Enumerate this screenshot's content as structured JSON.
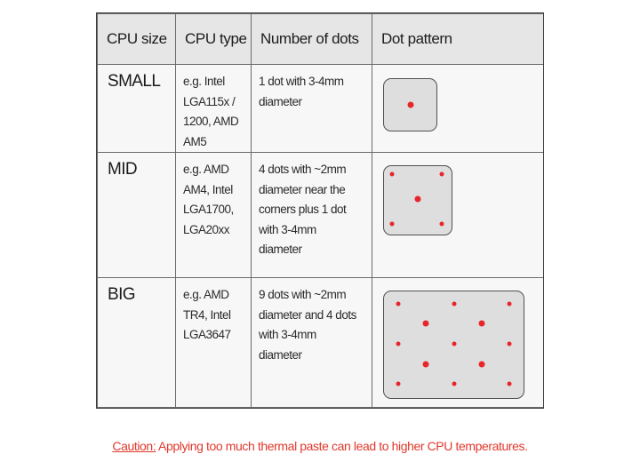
{
  "table": {
    "headers": {
      "cpu_size": "CPU size",
      "cpu_type": "CPU type",
      "number_of_dots": "Number of dots",
      "dot_pattern": "Dot pattern"
    },
    "rows": [
      {
        "size": "SMALL",
        "cpu_type": "e.g. Intel\nLGA115x /\n1200, AMD\nAM5",
        "number_of_dots": "1 dot with 3-4mm\ndiameter",
        "pattern": "single-center-dot"
      },
      {
        "size": "MID",
        "cpu_type": "e.g. AMD\nAM4, Intel\nLGA1700,\nLGA20xx",
        "number_of_dots": "4 dots with ~2mm\ndiameter near the\ncorners plus 1 dot\nwith 3-4mm\ndiameter",
        "pattern": "four-corners-plus-center"
      },
      {
        "size": "BIG",
        "cpu_type": "e.g. AMD\nTR4, Intel\nLGA3647",
        "number_of_dots": "9 dots with ~2mm\ndiameter and 4 dots\nwith 3-4mm\ndiameter",
        "pattern": "grid-9-small-4-large"
      }
    ]
  },
  "caution": {
    "label": "Caution:",
    "text": " Applying too much thermal paste can lead to higher CPU temperatures."
  },
  "colors": {
    "dot": "#e8262a",
    "caution": "#e0382c",
    "header_bg": "#e6e6e6",
    "cell_bg": "#f7f7f7",
    "chip_bg": "#dedede"
  }
}
